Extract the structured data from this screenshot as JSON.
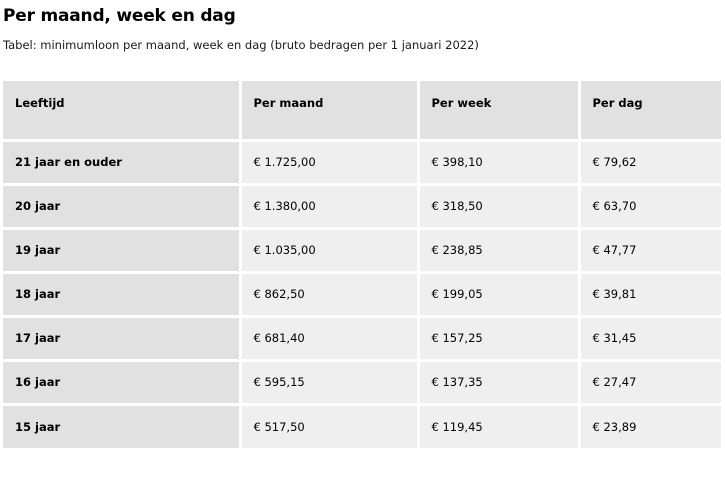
{
  "page": {
    "title": "Per maand, week en dag",
    "caption": "Tabel: minimumloon per maand, week en dag (bruto bedragen per 1 januari 2022)"
  },
  "table": {
    "headers": [
      "Leeftijd",
      "Per maand",
      "Per week",
      "Per dag"
    ],
    "rows": [
      [
        "21 jaar en ouder",
        "€ 1.725,00",
        "€ 398,10",
        "€ 79,62"
      ],
      [
        "20 jaar",
        "€ 1.380,00",
        "€ 318,50",
        "€ 63,70"
      ],
      [
        "19 jaar",
        "€ 1.035,00",
        "€ 238,85",
        "€ 47,77"
      ],
      [
        "18 jaar",
        "€ 862,50",
        "€ 199,05",
        "€ 39,81"
      ],
      [
        "17 jaar",
        "€ 681,40",
        "€ 157,25",
        "€ 31,45"
      ],
      [
        "16 jaar",
        "€ 595,15",
        "€ 137,35",
        "€ 27,47"
      ],
      [
        "15 jaar",
        "€ 517,50",
        "€ 119,45",
        "€ 23,89"
      ]
    ]
  }
}
